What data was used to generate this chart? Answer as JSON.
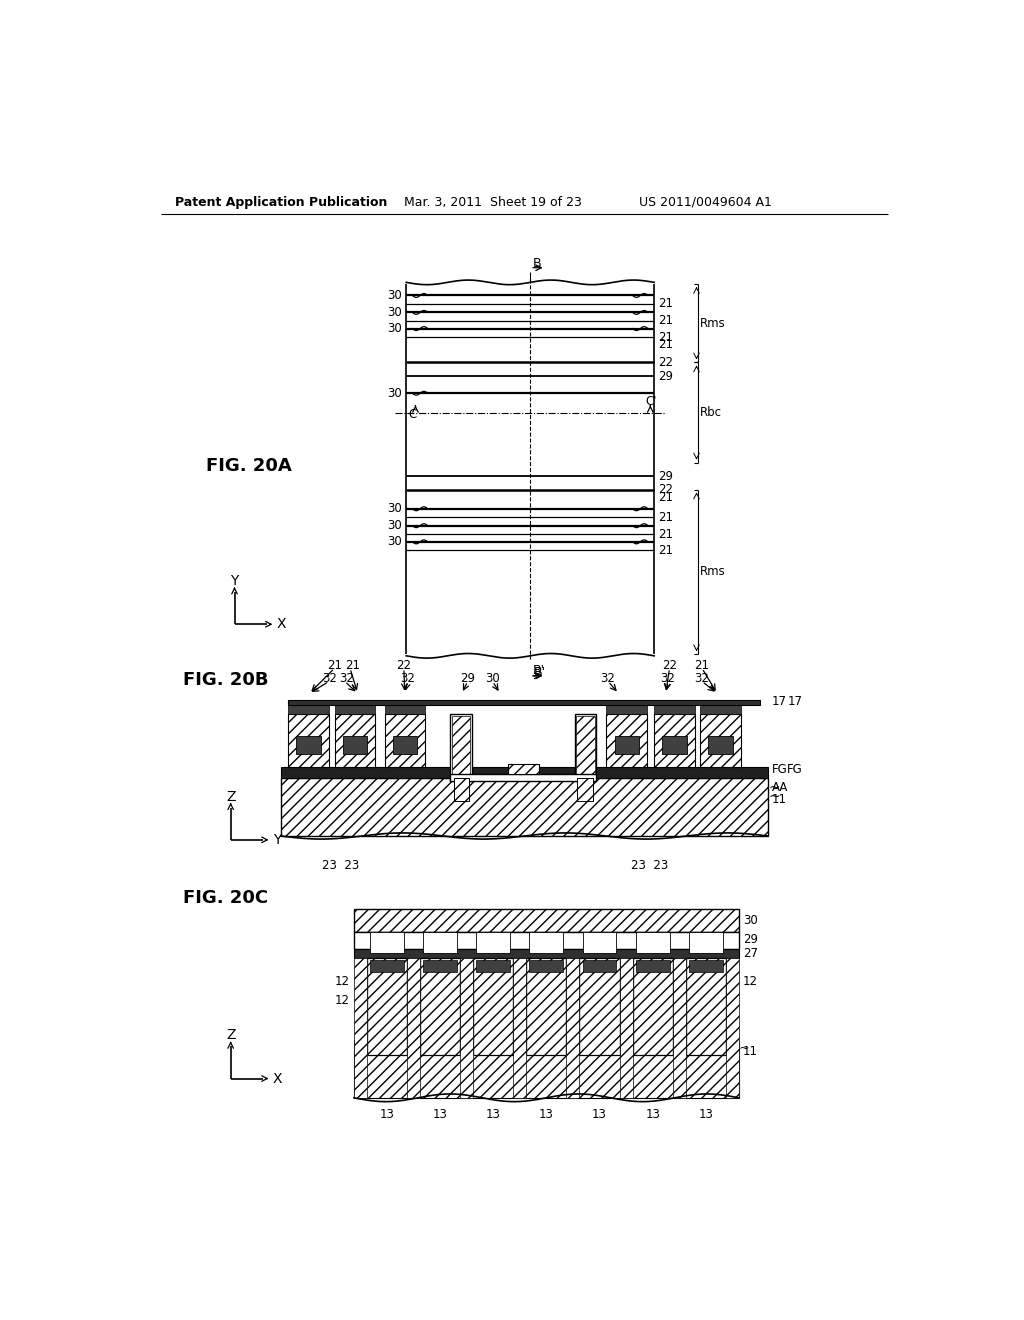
{
  "title_left": "Patent Application Publication",
  "title_mid": "Mar. 3, 2011  Sheet 19 of 23",
  "title_right": "US 2011/0049604 A1",
  "background_color": "#ffffff"
}
